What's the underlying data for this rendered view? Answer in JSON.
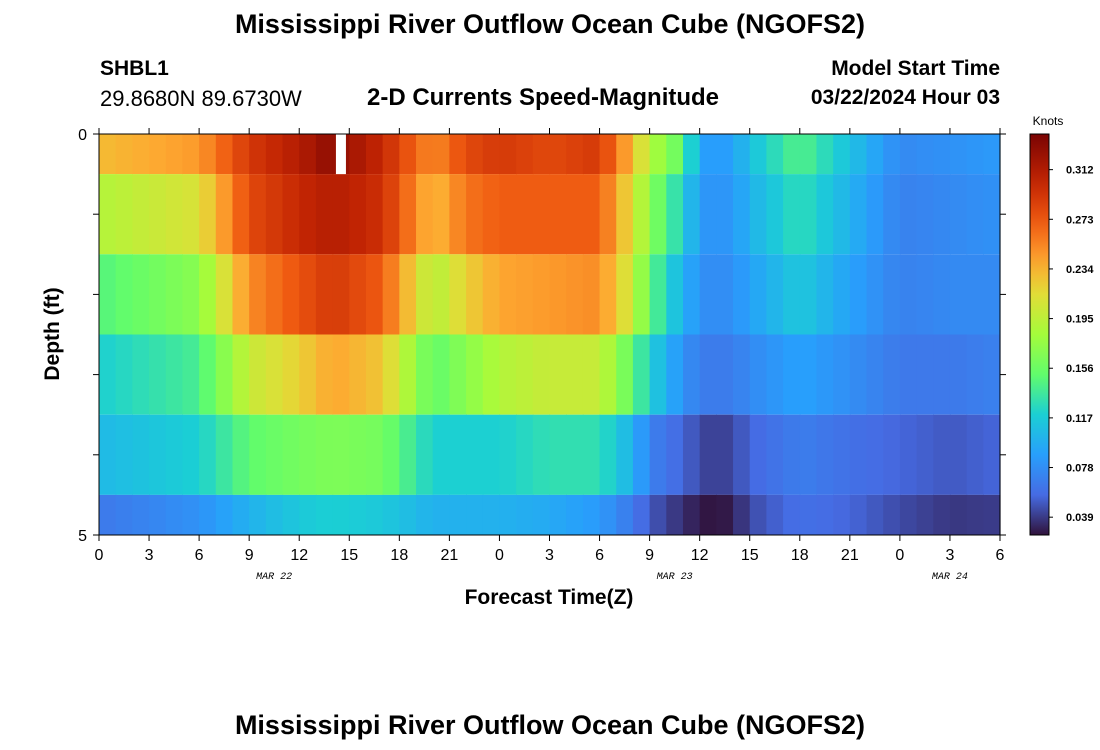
{
  "header": {
    "title": "Mississippi River Outflow Ocean Cube (NGOFS2)",
    "station_id": "SHBL1",
    "station_coords": "29.8680N  89.6730W",
    "subtitle": "2-D Currents Speed-Magnitude",
    "model_start_label": "Model Start Time",
    "model_start_value": "03/22/2024 Hour 03"
  },
  "footer": {
    "title": "Mississippi River Outflow Ocean Cube (NGOFS2)"
  },
  "chart_data": {
    "type": "heatmap",
    "title": "2-D Currents Speed-Magnitude",
    "xlabel": "Forecast Time(Z)",
    "ylabel": "Depth (ft)",
    "x_tick_labels": [
      "0",
      "3",
      "6",
      "9",
      "12",
      "15",
      "18",
      "21",
      "0",
      "3",
      "6",
      "9",
      "12",
      "15",
      "18",
      "21",
      "0",
      "3",
      "6"
    ],
    "x_date_labels": [
      {
        "label": "MAR 22",
        "tick_index": 3.5
      },
      {
        "label": "MAR 23",
        "tick_index": 11.5
      },
      {
        "label": "MAR 24",
        "tick_index": 17.0
      }
    ],
    "y_tick_labels": [
      "0",
      "5"
    ],
    "ylim": [
      0,
      5
    ],
    "colorbar": {
      "unit": "Knots",
      "ticks": [
        "0.312",
        "0.273",
        "0.234",
        "0.195",
        "0.156",
        "0.117",
        "0.078",
        "0.039"
      ],
      "range": [
        0.025,
        0.34
      ]
    },
    "x_hours": [
      0,
      6,
      9,
      12,
      14,
      17,
      20,
      22,
      24,
      27,
      30,
      32,
      33,
      35,
      36,
      37,
      38,
      39,
      42,
      45,
      48,
      51,
      54
    ],
    "depth_layers": [
      "0-0.5",
      "0.5-1.5",
      "1.5-2.5",
      "2.5-3.5",
      "3.5-4.5",
      "4.5-5"
    ],
    "values": [
      [
        0.23,
        0.245,
        0.29,
        0.31,
        0.33,
        0.3,
        0.25,
        0.28,
        0.29,
        0.28,
        0.29,
        0.23,
        0.19,
        0.15,
        0.09,
        0.085,
        0.09,
        0.11,
        0.145,
        0.11,
        0.075,
        0.08,
        0.085
      ],
      [
        0.19,
        0.21,
        0.28,
        0.3,
        0.31,
        0.295,
        0.23,
        0.26,
        0.27,
        0.27,
        0.27,
        0.21,
        0.17,
        0.12,
        0.085,
        0.08,
        0.085,
        0.1,
        0.13,
        0.1,
        0.07,
        0.075,
        0.08
      ],
      [
        0.145,
        0.17,
        0.25,
        0.275,
        0.29,
        0.27,
        0.19,
        0.22,
        0.24,
        0.245,
        0.25,
        0.2,
        0.15,
        0.1,
        0.08,
        0.075,
        0.08,
        0.09,
        0.115,
        0.09,
        0.07,
        0.075,
        0.075
      ],
      [
        0.12,
        0.14,
        0.2,
        0.22,
        0.24,
        0.225,
        0.15,
        0.17,
        0.19,
        0.2,
        0.2,
        0.15,
        0.12,
        0.08,
        0.068,
        0.065,
        0.068,
        0.075,
        0.09,
        0.078,
        0.065,
        0.065,
        0.07
      ],
      [
        0.105,
        0.12,
        0.15,
        0.16,
        0.165,
        0.16,
        0.12,
        0.12,
        0.12,
        0.13,
        0.13,
        0.1,
        0.07,
        0.055,
        0.045,
        0.04,
        0.045,
        0.055,
        0.068,
        0.06,
        0.055,
        0.05,
        0.055
      ],
      [
        0.065,
        0.08,
        0.1,
        0.115,
        0.12,
        0.115,
        0.1,
        0.1,
        0.1,
        0.095,
        0.085,
        0.065,
        0.05,
        0.035,
        0.028,
        0.025,
        0.03,
        0.045,
        0.06,
        0.055,
        0.045,
        0.038,
        0.04
      ]
    ],
    "missing_cells": [
      {
        "layer": 0,
        "hour": 14.5,
        "color": "#ffffff"
      }
    ]
  }
}
